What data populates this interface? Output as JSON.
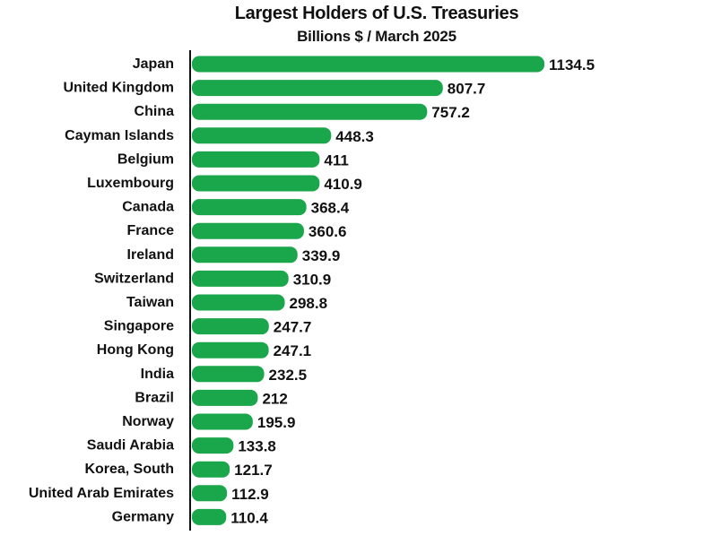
{
  "chart_data": {
    "type": "bar",
    "orientation": "horizontal",
    "title": "Largest Holders of U.S. Treasuries",
    "subtitle": "Billions $ / March 2025",
    "categories": [
      "Japan",
      "United Kingdom",
      "China",
      "Cayman Islands",
      "Belgium",
      "Luxembourg",
      "Canada",
      "France",
      "Ireland",
      "Switzerland",
      "Taiwan",
      "Singapore",
      "Hong Kong",
      "India",
      "Brazil",
      "Norway",
      "Saudi Arabia",
      "Korea, South",
      "United Arab Emirates",
      "Germany"
    ],
    "values": [
      1134.5,
      807.7,
      757.2,
      448.3,
      411,
      410.9,
      368.4,
      360.6,
      339.9,
      310.9,
      298.8,
      247.7,
      247.1,
      232.5,
      212,
      195.9,
      133.8,
      121.7,
      112.9,
      110.4
    ],
    "value_labels": [
      "1134.5",
      "807.7",
      "757.2",
      "448.3",
      "411",
      "410.9",
      "368.4",
      "360.6",
      "339.9",
      "310.9",
      "298.8",
      "247.7",
      "247.1",
      "232.5",
      "212",
      "195.9",
      "133.8",
      "121.7",
      "112.9",
      "110.4"
    ],
    "xlim": [
      0,
      1134.5
    ],
    "grid": false,
    "legend": "none",
    "bar_color": "#1aa64a",
    "axis_color": "#111111"
  }
}
